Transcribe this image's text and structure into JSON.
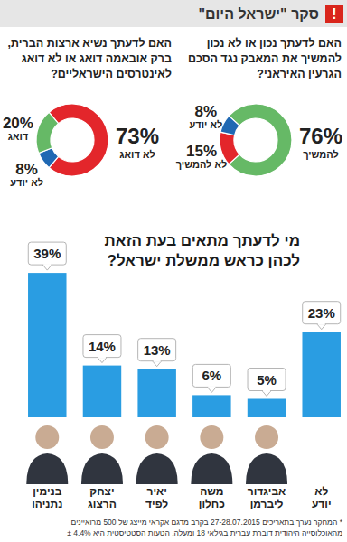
{
  "header": {
    "badge": "!",
    "title": "סקר \"ישראל היום\""
  },
  "chart_data": [
    {
      "type": "donut",
      "title": [
        "האם לדעתך נכון או לא נכון",
        "להמשיך את המאבק נגד הסכם",
        "הגרעין האיראני?"
      ],
      "categories": [
        "להמשיך",
        "לא להמשיך",
        "לא יודע"
      ],
      "values": [
        76,
        15,
        8
      ],
      "value_labels": [
        "76%",
        "15%",
        "8%"
      ],
      "colors": [
        "#66b966",
        "#e3262b",
        "#1f68b3"
      ],
      "data_labels": true
    },
    {
      "type": "donut",
      "title": [
        "האם לדעתך נשיא ארצות הברית,",
        "ברק אובאמה דואג או לא דואג",
        "לאינטרסים הישראליים?"
      ],
      "categories": [
        "לא דואג",
        "לא יודע",
        "דואג"
      ],
      "values": [
        73,
        8,
        20
      ],
      "value_labels": [
        "73%",
        "8%",
        "20%"
      ],
      "colors": [
        "#e3262b",
        "#1f68b3",
        "#66b966"
      ],
      "data_labels": true
    },
    {
      "type": "bar",
      "title": [
        "מי לדעתך מתאים בעת הזאת",
        "לכהן כראש ממשלת ישראל?"
      ],
      "categories": [
        "בנימין נתניהו",
        "יצחק הרצוג",
        "יאיר לפיד",
        "משה כחלון",
        "אביגדור ליברמן",
        "לא יודע"
      ],
      "values": [
        39,
        14,
        13,
        6,
        5,
        23
      ],
      "value_labels": [
        "39%",
        "14%",
        "13%",
        "6%",
        "5%",
        "23%"
      ],
      "color": "#2a9de2",
      "ylim": [
        0,
        40
      ],
      "data_labels": true,
      "tick_labels": "x"
    }
  ],
  "footnote": [
    "* המחקר נערך בתאריכים 27-28.07.2015 בקרב מדגם אקראי מייצג של 500 מרואיינים",
    "מהאוכלוסייה היהודית דוברת עברית בגילאי 18 ומעלה. הטעות הסטטיסטית היא 4.4% ±"
  ]
}
